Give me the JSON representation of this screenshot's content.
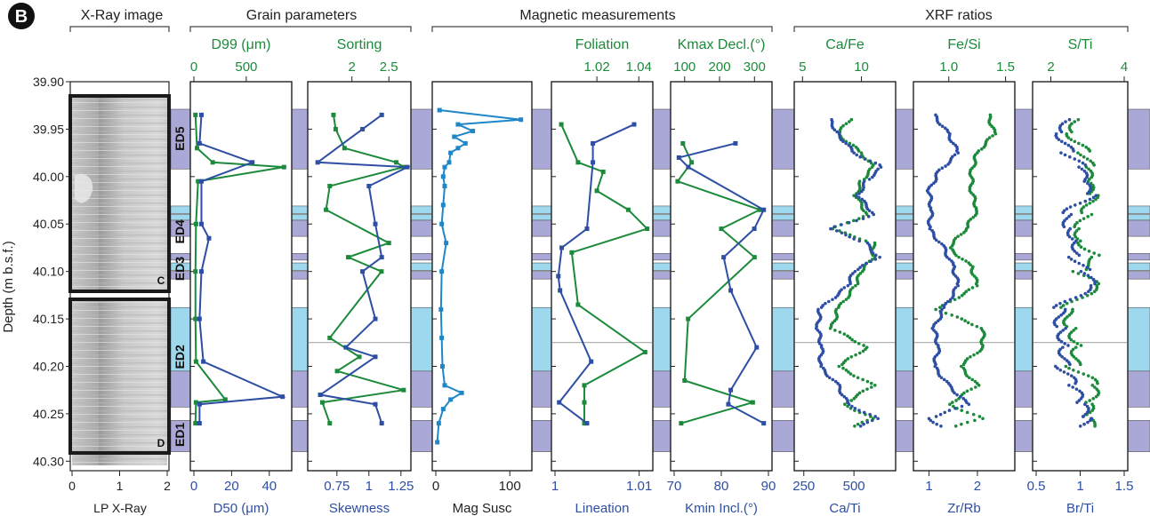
{
  "figure": {
    "panel_letter": "B",
    "depth_axis": {
      "label": "Depth (m b.s.f.)",
      "ticks": [
        "39.90",
        "39.95",
        "40.00",
        "40.05",
        "40.10",
        "40.15",
        "40.20",
        "40.25",
        "40.30"
      ],
      "range": [
        39.9,
        40.31
      ]
    },
    "groups": [
      {
        "id": "xray",
        "title": "X-Ray image"
      },
      {
        "id": "grain",
        "title": "Grain parameters"
      },
      {
        "id": "mag",
        "title": "Magnetic measurements"
      },
      {
        "id": "xrf",
        "title": "XRF ratios"
      }
    ],
    "event_deposits": [
      "ED5",
      "ED4",
      "ED3",
      "ED2",
      "ED1"
    ],
    "core_section_labels": [
      "C",
      "D"
    ],
    "colors": {
      "blue": "#2d4ea3",
      "green": "#1b8a3a",
      "mag_blue": "#1f86c8",
      "band_purple": "#aaa8d6",
      "band_light": "#9ed8ee"
    }
  },
  "chart_data": [
    {
      "type": "image",
      "id": "xray",
      "xlabel": "LP X-Ray",
      "xticks": [
        "0",
        "1",
        "2"
      ],
      "xlim": [
        0,
        2
      ]
    },
    {
      "type": "line",
      "id": "d99",
      "title": "D99 (μm)",
      "top_ticks": [
        "0",
        "500"
      ],
      "top_lim": [
        0,
        900
      ],
      "xlabel": "D50 (μm)",
      "bottom_ticks": [
        "0",
        "20",
        "40"
      ],
      "bottom_lim": [
        0,
        50
      ],
      "series": [
        {
          "name": "D99 (μm)",
          "axis": "top",
          "color": "green",
          "depth": [
            39.935,
            39.97,
            39.985,
            39.99,
            40.005,
            40.05,
            40.1,
            40.15,
            40.195,
            40.235,
            40.238,
            40.26
          ],
          "values": [
            15,
            30,
            180,
            860,
            40,
            20,
            15,
            15,
            20,
            300,
            20,
            15
          ]
        },
        {
          "name": "D50 (μm)",
          "axis": "bottom",
          "color": "blue",
          "depth": [
            39.935,
            39.965,
            39.985,
            40.005,
            40.05,
            40.065,
            40.1,
            40.15,
            40.195,
            40.232,
            40.24,
            40.26
          ],
          "values": [
            4,
            3,
            31,
            4,
            4,
            8,
            4,
            3,
            5,
            47,
            3,
            3
          ]
        }
      ]
    },
    {
      "type": "line",
      "id": "sorting",
      "title": "Sorting",
      "top_ticks": [
        "2",
        "2.5"
      ],
      "top_lim": [
        1.45,
        2.75
      ],
      "xlabel": "Skewness",
      "bottom_ticks": [
        "0.75",
        "1",
        "1.25"
      ],
      "bottom_lim": [
        0.55,
        1.3
      ],
      "series": [
        {
          "name": "Sorting",
          "axis": "top",
          "color": "green",
          "depth": [
            39.935,
            39.95,
            39.97,
            39.985,
            39.99,
            40.01,
            40.035,
            40.07,
            40.085,
            40.1,
            40.17,
            40.19,
            40.205,
            40.225,
            40.238,
            40.26
          ],
          "values": [
            1.75,
            1.78,
            1.9,
            2.6,
            2.7,
            1.7,
            1.65,
            2.5,
            1.95,
            2.4,
            1.7,
            2.1,
            1.8,
            2.7,
            1.6,
            1.7
          ]
        },
        {
          "name": "Skewness",
          "axis": "bottom",
          "color": "blue",
          "depth": [
            39.935,
            39.95,
            39.985,
            39.99,
            40.01,
            40.05,
            40.085,
            40.1,
            40.15,
            40.18,
            40.19,
            40.23,
            40.24,
            40.26
          ],
          "values": [
            1.1,
            0.95,
            0.6,
            1.3,
            1.0,
            1.05,
            1.1,
            0.95,
            1.05,
            0.82,
            1.05,
            0.62,
            1.05,
            1.1
          ]
        }
      ]
    },
    {
      "type": "line",
      "id": "magsusc",
      "xlabel": "Mag Susc",
      "bottom_ticks": [
        "0",
        "100"
      ],
      "bottom_lim": [
        0,
        125
      ],
      "series": [
        {
          "name": "Mag Susc",
          "axis": "bottom",
          "color": "mag_blue",
          "depth": [
            39.93,
            39.94,
            39.945,
            39.952,
            39.958,
            39.965,
            39.97,
            39.975,
            39.985,
            39.99,
            40.0,
            40.01,
            40.03,
            40.05,
            40.07,
            40.1,
            40.14,
            40.17,
            40.2,
            40.22,
            40.228,
            40.235,
            40.245,
            40.26,
            40.28
          ],
          "values": [
            5,
            115,
            30,
            50,
            25,
            40,
            30,
            20,
            18,
            12,
            10,
            12,
            10,
            8,
            14,
            8,
            7,
            8,
            9,
            12,
            35,
            20,
            10,
            4,
            2
          ]
        }
      ]
    },
    {
      "type": "line",
      "id": "foliation",
      "title": "Foliation",
      "top_ticks": [
        "1.02",
        "1.04"
      ],
      "top_lim": [
        1.0,
        1.045
      ],
      "xlabel": "Lineation",
      "bottom_ticks": [
        "1",
        "1.01"
      ],
      "bottom_lim": [
        1.0,
        1.0112
      ],
      "series": [
        {
          "name": "Foliation",
          "axis": "top",
          "color": "green",
          "depth": [
            39.945,
            39.985,
            39.995,
            40.015,
            40.035,
            40.055,
            40.08,
            40.135,
            40.185,
            40.22,
            40.238,
            40.26
          ],
          "values": [
            1.003,
            1.011,
            1.023,
            1.02,
            1.035,
            1.044,
            1.008,
            1.011,
            1.043,
            1.014,
            1.014,
            1.014
          ]
        },
        {
          "name": "Lineation",
          "axis": "bottom",
          "color": "blue",
          "depth": [
            39.945,
            39.965,
            39.985,
            40.055,
            40.075,
            40.105,
            40.12,
            40.195,
            40.238,
            40.26
          ],
          "values": [
            1.0094,
            1.0045,
            1.0045,
            1.0038,
            1.0008,
            1.0004,
            1.0006,
            1.0043,
            1.0005,
            1.0038
          ]
        }
      ]
    },
    {
      "type": "line",
      "id": "kmax",
      "title": "Kmax Decl.(°)",
      "top_ticks": [
        "100",
        "200",
        "300"
      ],
      "top_lim": [
        70,
        340
      ],
      "xlabel": "Kmin Incl.(°)",
      "bottom_ticks": [
        "70",
        "80",
        "90"
      ],
      "bottom_lim": [
        70,
        90
      ],
      "series": [
        {
          "name": "Kmax Decl.(°)",
          "axis": "top",
          "color": "green",
          "depth": [
            39.965,
            39.985,
            40.005,
            40.035,
            40.055,
            40.085,
            40.15,
            40.215,
            40.238,
            40.26
          ],
          "values": [
            95,
            120,
            80,
            315,
            205,
            300,
            110,
            100,
            295,
            90
          ]
        },
        {
          "name": "Kmin Incl.(°)",
          "axis": "bottom",
          "color": "blue",
          "depth": [
            39.965,
            39.98,
            39.99,
            40.035,
            40.055,
            40.085,
            40.12,
            40.18,
            40.225,
            40.24,
            40.26
          ],
          "values": [
            83,
            71,
            73,
            89,
            87,
            80.5,
            82,
            87.5,
            82,
            81.5,
            89
          ]
        }
      ]
    },
    {
      "type": "scatter",
      "id": "cafe",
      "title": "Ca/Fe",
      "top_ticks": [
        "5",
        "10"
      ],
      "top_lim": [
        4.6,
        12.6
      ],
      "xlabel": "Ca/Ti",
      "bottom_ticks": [
        "250",
        "500"
      ],
      "bottom_lim": [
        220,
        690
      ],
      "series": [
        {
          "name": "Ca/Fe",
          "axis": "top",
          "color": "green",
          "depth": [
            39.94,
            39.955,
            39.975,
            39.99,
            40.005,
            40.02,
            40.04,
            40.055,
            40.07,
            40.085,
            40.1,
            40.115,
            40.14,
            40.16,
            40.18,
            40.2,
            40.22,
            40.24,
            40.255,
            40.265
          ],
          "values": [
            9,
            8,
            10,
            11,
            10,
            9.5,
            10.5,
            7.5,
            11,
            11,
            10,
            9.5,
            8,
            7.5,
            10.5,
            8,
            11,
            8.5,
            11,
            9
          ]
        },
        {
          "name": "Ca/Ti",
          "axis": "bottom",
          "color": "blue",
          "depth": [
            39.94,
            39.955,
            39.975,
            39.99,
            40.005,
            40.02,
            40.04,
            40.055,
            40.07,
            40.085,
            40.1,
            40.115,
            40.14,
            40.16,
            40.18,
            40.2,
            40.22,
            40.24,
            40.255,
            40.265
          ],
          "values": [
            380,
            420,
            500,
            640,
            560,
            520,
            600,
            380,
            560,
            620,
            500,
            470,
            330,
            320,
            340,
            330,
            420,
            470,
            620,
            510
          ]
        }
      ]
    },
    {
      "type": "scatter",
      "id": "fesi",
      "title": "Fe/Si",
      "top_ticks": [
        "1.0",
        "1.5"
      ],
      "top_lim": [
        0.72,
        1.55
      ],
      "xlabel": "Zr/Rb",
      "bottom_ticks": [
        "1",
        "2"
      ],
      "bottom_lim": [
        0.75,
        2.7
      ],
      "series": [
        {
          "name": "Fe/Si",
          "axis": "top",
          "color": "green",
          "depth": [
            39.935,
            39.955,
            39.975,
            39.995,
            40.015,
            40.035,
            40.055,
            40.075,
            40.095,
            40.115,
            40.14,
            40.16,
            40.18,
            40.2,
            40.22,
            40.24,
            40.255,
            40.265
          ],
          "values": [
            1.35,
            1.4,
            1.25,
            1.2,
            1.2,
            1.25,
            1.15,
            1.0,
            1.2,
            1.25,
            0.9,
            1.3,
            1.3,
            1.1,
            1.25,
            1.0,
            1.3,
            1.0
          ]
        },
        {
          "name": "Zr/Rb",
          "axis": "bottom",
          "color": "blue",
          "depth": [
            39.935,
            39.955,
            39.975,
            39.995,
            40.015,
            40.035,
            40.055,
            40.075,
            40.095,
            40.115,
            40.14,
            40.16,
            40.18,
            40.2,
            40.22,
            40.24,
            40.255,
            40.265
          ],
          "values": [
            1.1,
            1.4,
            1.6,
            1.2,
            1.0,
            1.05,
            1.0,
            1.3,
            1.5,
            1.6,
            1.3,
            1.1,
            1.2,
            1.1,
            1.4,
            1.8,
            1.0,
            1.3
          ]
        }
      ]
    },
    {
      "type": "scatter",
      "id": "sti",
      "title": "S/Ti",
      "top_ticks": [
        "2",
        "4"
      ],
      "top_lim": [
        1.6,
        4.0
      ],
      "xlabel": "Br/Ti",
      "bottom_ticks": [
        "0.5",
        "1",
        "1.5"
      ],
      "bottom_lim": [
        0.5,
        1.5
      ],
      "series": [
        {
          "name": "S/Ti",
          "axis": "top",
          "color": "green",
          "depth": [
            39.94,
            39.955,
            39.975,
            39.99,
            40.005,
            40.02,
            40.04,
            40.055,
            40.07,
            40.085,
            40.1,
            40.115,
            40.14,
            40.16,
            40.18,
            40.2,
            40.22,
            40.24,
            40.255,
            40.265
          ],
          "values": [
            2.8,
            2.6,
            2.9,
            3.0,
            2.9,
            3.1,
            3.0,
            2.8,
            2.9,
            3.3,
            2.7,
            3.2,
            2.4,
            2.6,
            2.8,
            2.6,
            3.2,
            3.0,
            2.9,
            3.3
          ]
        },
        {
          "name": "Br/Ti",
          "axis": "bottom",
          "color": "blue",
          "depth": [
            39.94,
            39.955,
            39.975,
            39.99,
            40.005,
            40.02,
            40.04,
            40.055,
            40.07,
            40.085,
            40.1,
            40.115,
            40.14,
            40.16,
            40.18,
            40.2,
            40.22,
            40.24,
            40.255,
            40.265
          ],
          "values": [
            0.9,
            0.8,
            0.85,
            1.0,
            1.0,
            1.1,
            0.85,
            0.9,
            1.0,
            0.95,
            1.05,
            1.1,
            0.75,
            0.8,
            0.85,
            0.8,
            0.9,
            1.0,
            1.05,
            1.0
          ]
        }
      ]
    }
  ]
}
